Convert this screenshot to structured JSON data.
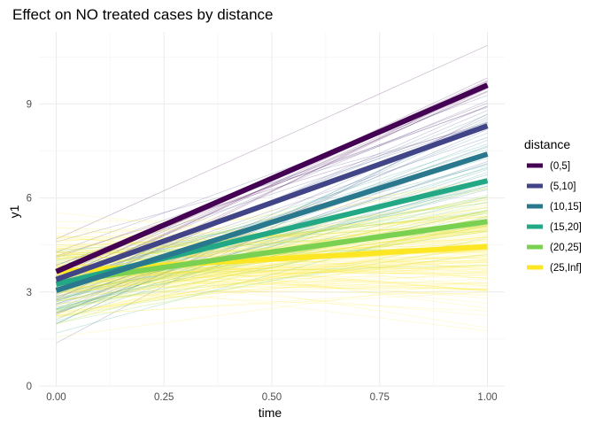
{
  "chart_data": {
    "type": "line",
    "title": "Effect on NO treated cases by distance",
    "xlabel": "time",
    "ylabel": "y1",
    "xlim": [
      -0.04,
      1.04
    ],
    "ylim": [
      0,
      11.3
    ],
    "x_ticks": [
      0,
      0.25,
      0.5,
      0.75,
      1
    ],
    "x_tick_labels": [
      "0.00",
      "0.25",
      "0.50",
      "0.75",
      "1.00"
    ],
    "y_ticks": [
      0,
      3,
      6,
      9
    ],
    "y_tick_labels": [
      "0",
      "3",
      "6",
      "9"
    ],
    "grid": true,
    "legend": {
      "title": "distance",
      "position": "right"
    },
    "series": [
      {
        "name": "(0,5]",
        "color": "#440154",
        "x": [
          0,
          1
        ],
        "values": [
          3.65,
          9.6
        ]
      },
      {
        "name": "(5,10]",
        "color": "#414487",
        "x": [
          0,
          1
        ],
        "values": [
          3.4,
          8.3
        ]
      },
      {
        "name": "(10,15]",
        "color": "#2a788e",
        "x": [
          0,
          1
        ],
        "values": [
          3.05,
          7.4
        ]
      },
      {
        "name": "(15,20]",
        "color": "#22a884",
        "x": [
          0,
          1
        ],
        "values": [
          3.25,
          6.55
        ]
      },
      {
        "name": "(20,25]",
        "color": "#7ad151",
        "x": [
          0,
          1
        ],
        "values": [
          3.3,
          5.25
        ]
      },
      {
        "name": "(25,Inf]",
        "color": "#fde725",
        "x": [
          0,
          1
        ],
        "values": [
          3.65,
          4.45
        ]
      }
    ]
  }
}
